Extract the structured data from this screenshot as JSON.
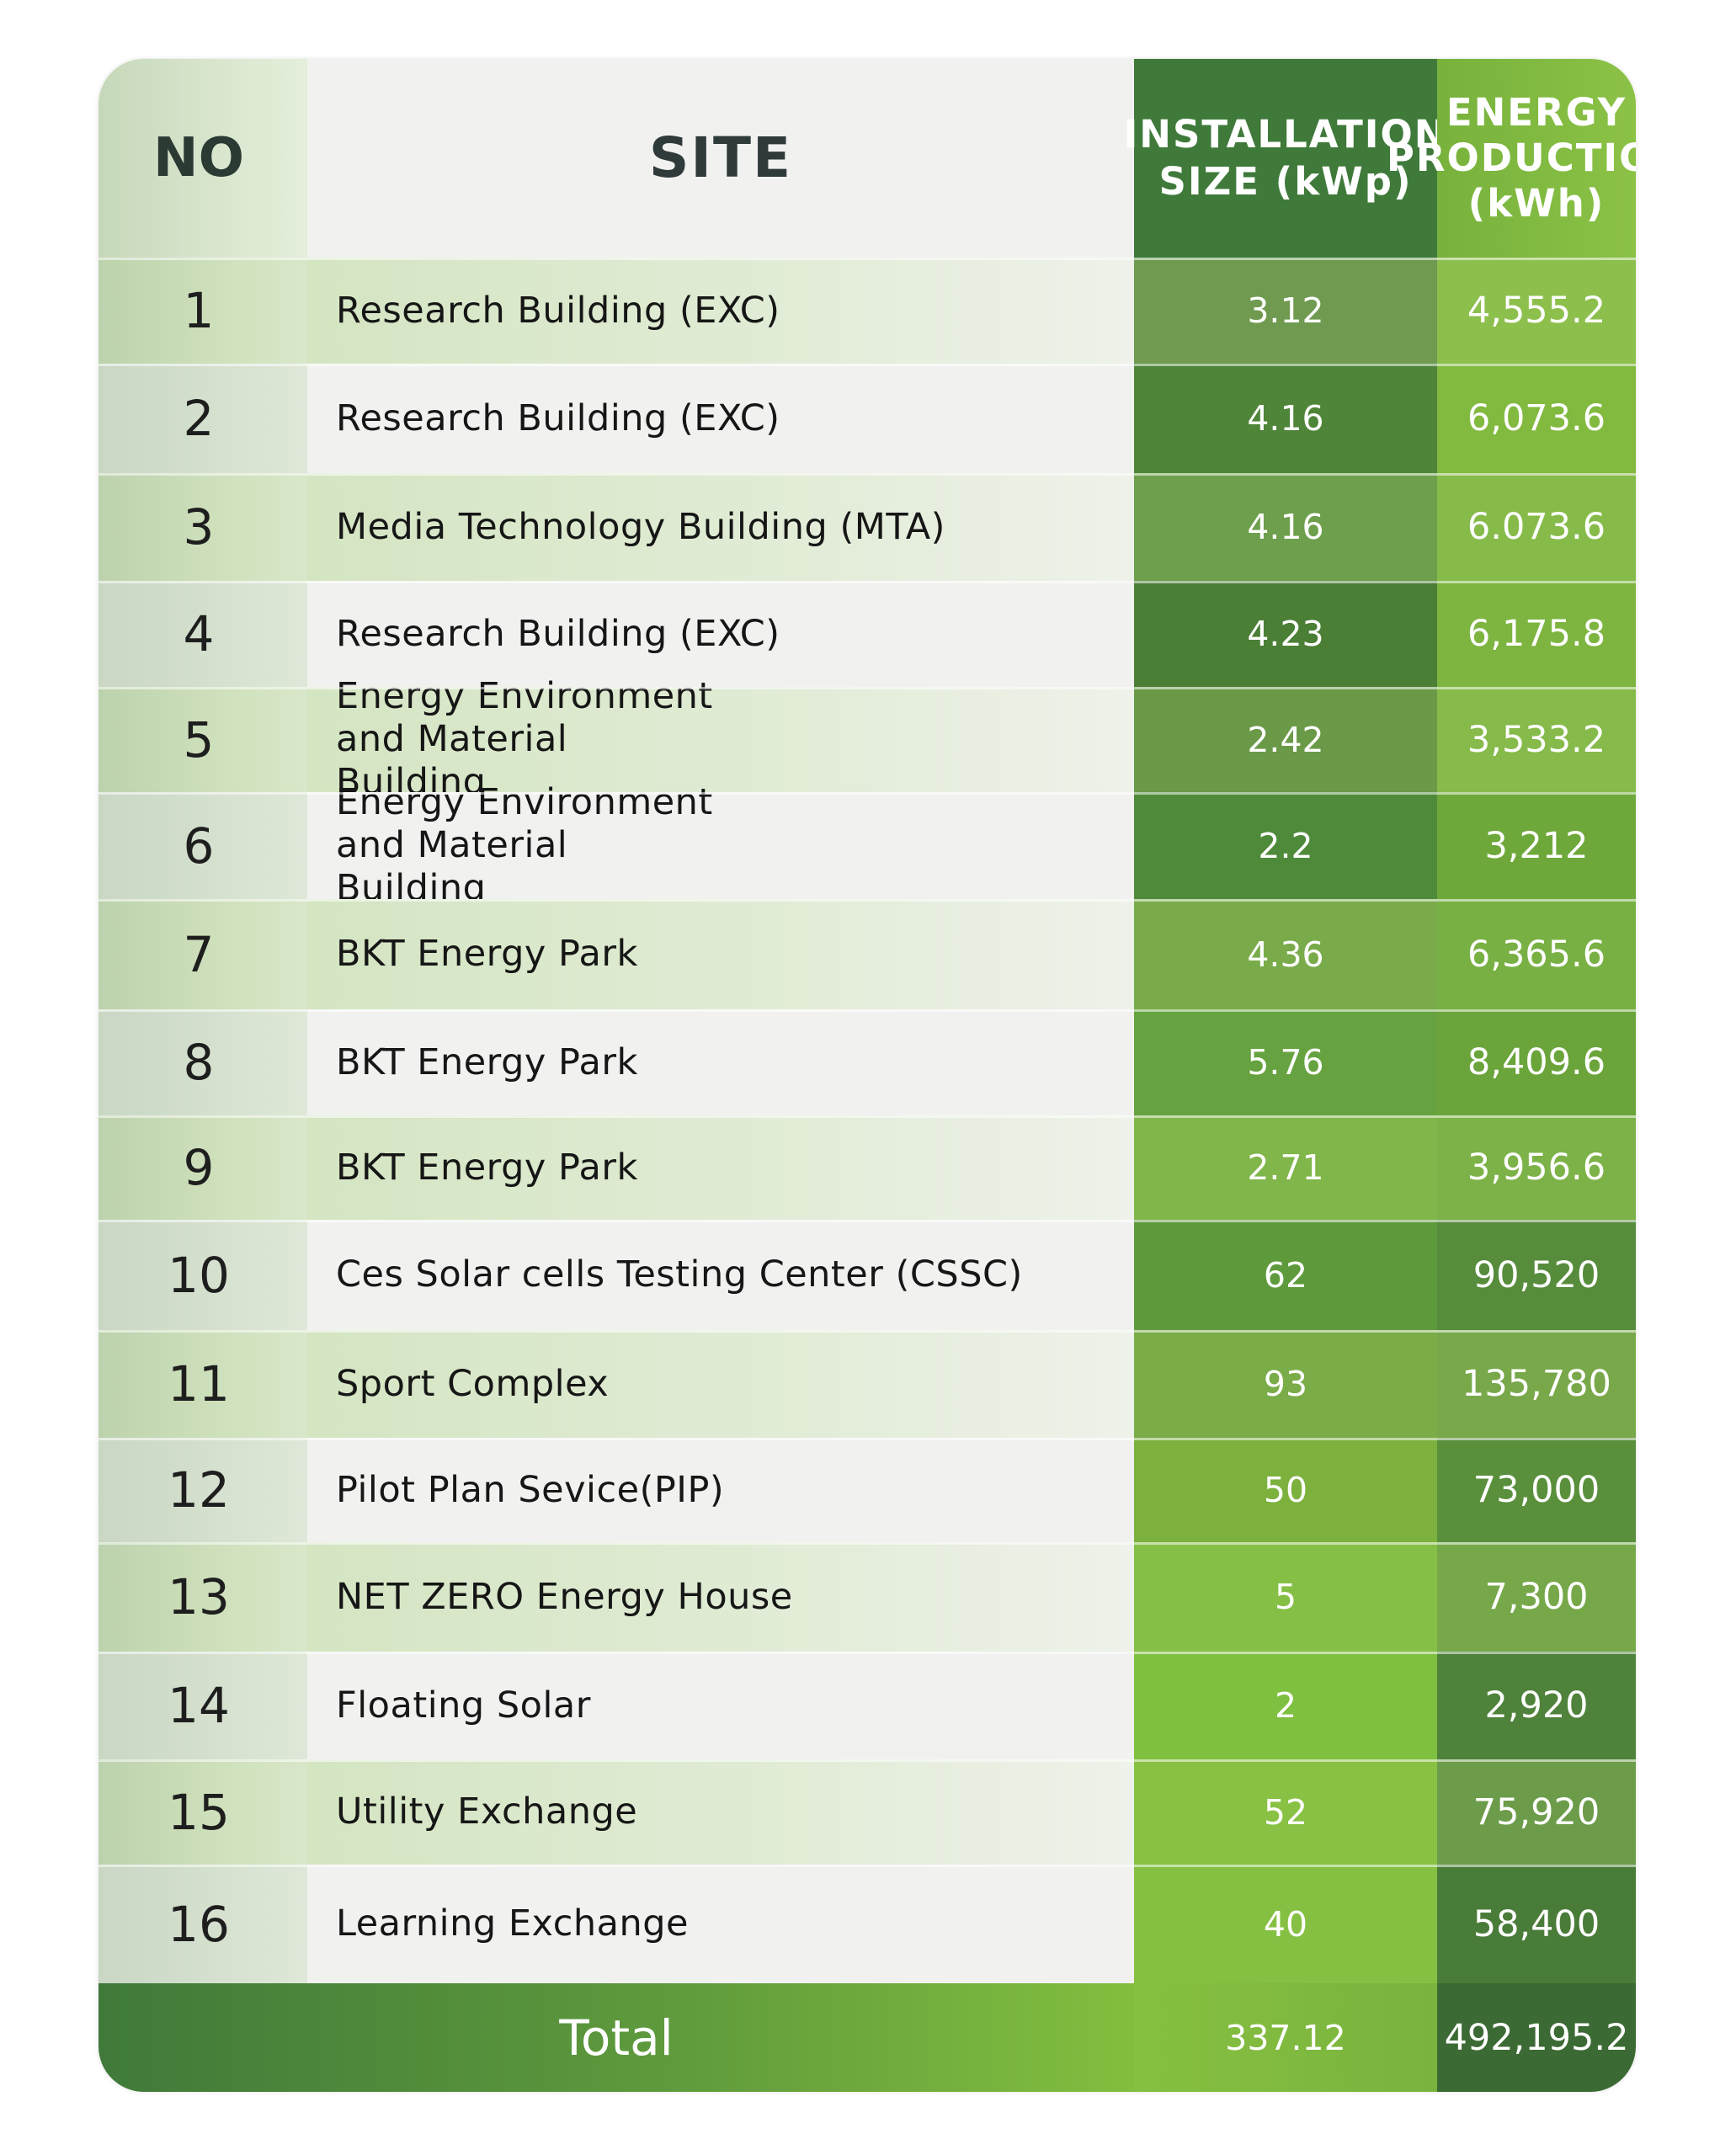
{
  "headers": {
    "no": "NO",
    "site": "SITE",
    "installation_line1": "INSTALLATION",
    "installation_line2": "SIZE (kWp)",
    "energy_line1": "ENERGY",
    "energy_line2": "PRODUCTION",
    "energy_line3": "(kWh)"
  },
  "rows": [
    {
      "no": "1",
      "site": "Research Building (EXC)",
      "installation": "3.12",
      "energy": "4,555.2"
    },
    {
      "no": "2",
      "site": "Research Building (EXC)",
      "installation": "4.16",
      "energy": "6,073.6"
    },
    {
      "no": "3",
      "site": "Media Technology Building (MTA)",
      "installation": "4.16",
      "energy": "6.073.6"
    },
    {
      "no": "4",
      "site": "Research Building (EXC)",
      "installation": "4.23",
      "energy": "6,175.8"
    },
    {
      "no": "5",
      "site": "Energy Environment and Material Building",
      "installation": "2.42",
      "energy": "3,533.2"
    },
    {
      "no": "6",
      "site": "Energy Environment and Material Building",
      "installation": "2.2",
      "energy": "3,212"
    },
    {
      "no": "7",
      "site": "BKT Energy Park",
      "installation": "4.36",
      "energy": "6,365.6"
    },
    {
      "no": "8",
      "site": "BKT Energy Park",
      "installation": "5.76",
      "energy": "8,409.6"
    },
    {
      "no": "9",
      "site": "BKT Energy Park",
      "installation": "2.71",
      "energy": "3,956.6"
    },
    {
      "no": "10",
      "site": "Ces Solar cells Testing Center (CSSC)",
      "installation": "62",
      "energy": "90,520"
    },
    {
      "no": "11",
      "site": "Sport Complex",
      "installation": "93",
      "energy": "135,780"
    },
    {
      "no": "12",
      "site": "Pilot Plan Sevice(PIP)",
      "installation": "50",
      "energy": "73,000"
    },
    {
      "no": "13",
      "site": "NET ZERO Energy House",
      "installation": "5",
      "energy": "7,300"
    },
    {
      "no": "14",
      "site": "Floating Solar",
      "installation": "2",
      "energy": "2,920"
    },
    {
      "no": "15",
      "site": "Utility Exchange",
      "installation": "52",
      "energy": "75,920"
    },
    {
      "no": "16",
      "site": "Learning Exchange",
      "installation": "40",
      "energy": "58,400"
    }
  ],
  "total": {
    "label": "Total",
    "installation": "337.12",
    "energy": "492,195.2"
  },
  "colors": {
    "inst_shades": [
      "#6f9a50",
      "#4f8538",
      "#6e9f4c",
      "#4b7f36",
      "#6a9a48",
      "#4f8a3a",
      "#79ab4b",
      "#66a23f",
      "#80b64a",
      "#5e9a3c",
      "#7aac48",
      "#7cb13d",
      "#86bf45",
      "#80c040",
      "#88c143",
      "#85c042"
    ],
    "energy_shades": [
      "#8dbf4d",
      "#82b93f",
      "#86bb4a",
      "#7db540",
      "#86ba4a",
      "#6fa83a",
      "#78b043",
      "#6aa43a",
      "#7cb247",
      "#578c3c",
      "#78a84a",
      "#5a8f3c",
      "#76a84a",
      "#4f823a",
      "#6c9c4a",
      "#4a7c39"
    ]
  }
}
